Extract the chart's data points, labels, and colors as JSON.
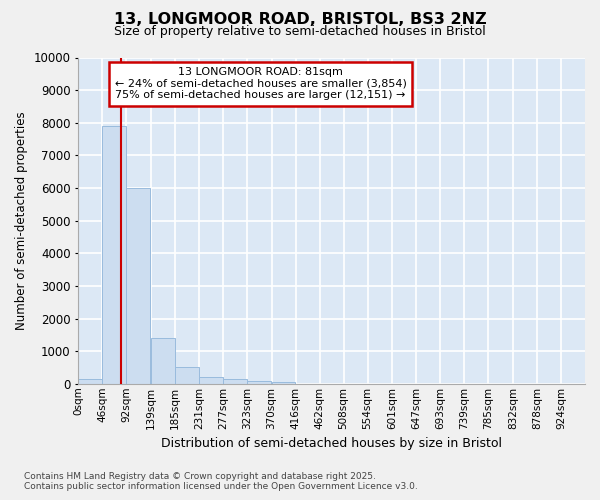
{
  "title_line1": "13, LONGMOOR ROAD, BRISTOL, BS3 2NZ",
  "title_line2": "Size of property relative to semi-detached houses in Bristol",
  "xlabel": "Distribution of semi-detached houses by size in Bristol",
  "ylabel": "Number of semi-detached properties",
  "property_size": 81,
  "property_label": "13 LONGMOOR ROAD: 81sqm",
  "annotation_smaller": "← 24% of semi-detached houses are smaller (3,854)",
  "annotation_larger": "75% of semi-detached houses are larger (12,151) →",
  "bin_labels": [
    "0sqm",
    "46sqm",
    "92sqm",
    "139sqm",
    "185sqm",
    "231sqm",
    "277sqm",
    "323sqm",
    "370sqm",
    "416sqm",
    "462sqm",
    "508sqm",
    "554sqm",
    "601sqm",
    "647sqm",
    "693sqm",
    "739sqm",
    "785sqm",
    "832sqm",
    "878sqm",
    "924sqm"
  ],
  "bin_edges": [
    0,
    46,
    92,
    139,
    185,
    231,
    277,
    323,
    370,
    416,
    462,
    508,
    554,
    601,
    647,
    693,
    739,
    785,
    832,
    878,
    924,
    970
  ],
  "bar_heights": [
    150,
    7900,
    6000,
    1400,
    500,
    200,
    150,
    100,
    50,
    0,
    0,
    0,
    0,
    0,
    0,
    0,
    0,
    0,
    0,
    0,
    0
  ],
  "bar_color": "#ccddf0",
  "bar_edge_color": "#99bbdd",
  "redline_color": "#cc0000",
  "annotation_box_edgecolor": "#cc0000",
  "plot_bg_color": "#dce8f5",
  "fig_bg_color": "#f0f0f0",
  "grid_color": "#ffffff",
  "footer_line1": "Contains HM Land Registry data © Crown copyright and database right 2025.",
  "footer_line2": "Contains public sector information licensed under the Open Government Licence v3.0.",
  "ylim": [
    0,
    10000
  ],
  "yticks": [
    0,
    1000,
    2000,
    3000,
    4000,
    5000,
    6000,
    7000,
    8000,
    9000,
    10000
  ]
}
